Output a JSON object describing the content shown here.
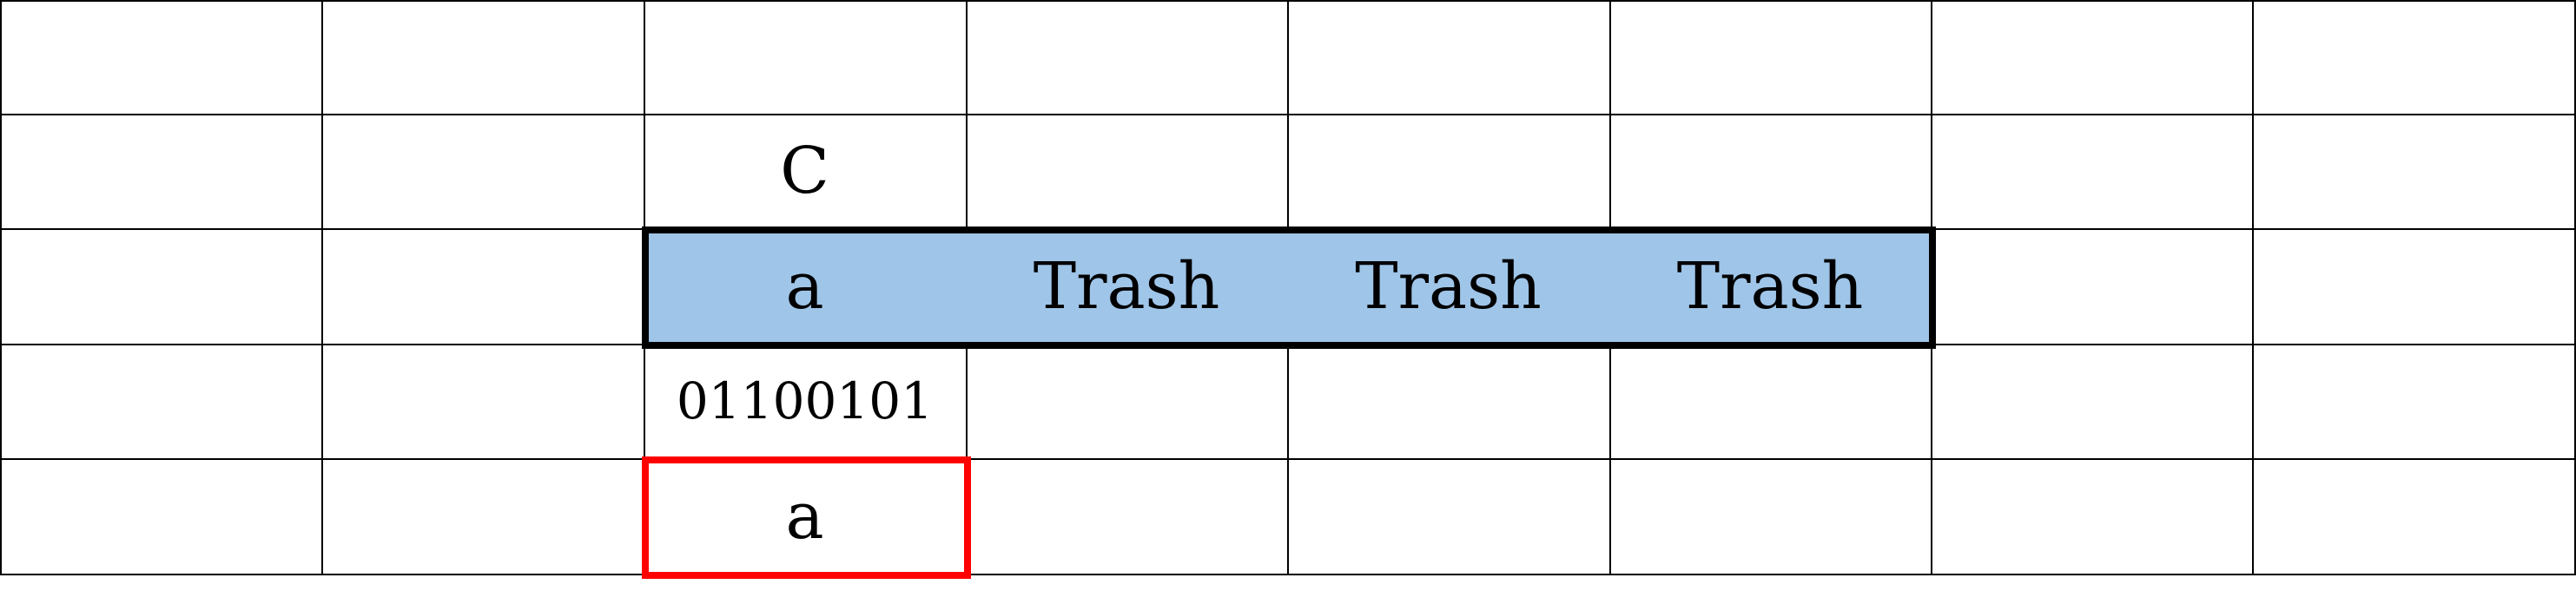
{
  "grid": {
    "rows": [
      [
        "",
        "",
        "",
        "",
        "",
        "",
        "",
        ""
      ],
      [
        "",
        "",
        "C",
        "",
        "",
        "",
        "",
        ""
      ],
      [
        "",
        "",
        "a",
        "Trash",
        "Trash",
        "Trash",
        "",
        ""
      ],
      [
        "",
        "",
        "01100101",
        "",
        "",
        "",
        "",
        ""
      ],
      [
        "",
        "",
        "a",
        "",
        "",
        "",
        "",
        ""
      ]
    ],
    "highlight_color": "#9fc5e8",
    "row_box_color": "#000000",
    "cell_box_color": "#ff0000",
    "highlighted_row": 2,
    "highlighted_cols": [
      2,
      3,
      4,
      5
    ],
    "red_box_cell": [
      4,
      2
    ],
    "small_text_cells": [
      [
        3,
        2
      ]
    ]
  }
}
